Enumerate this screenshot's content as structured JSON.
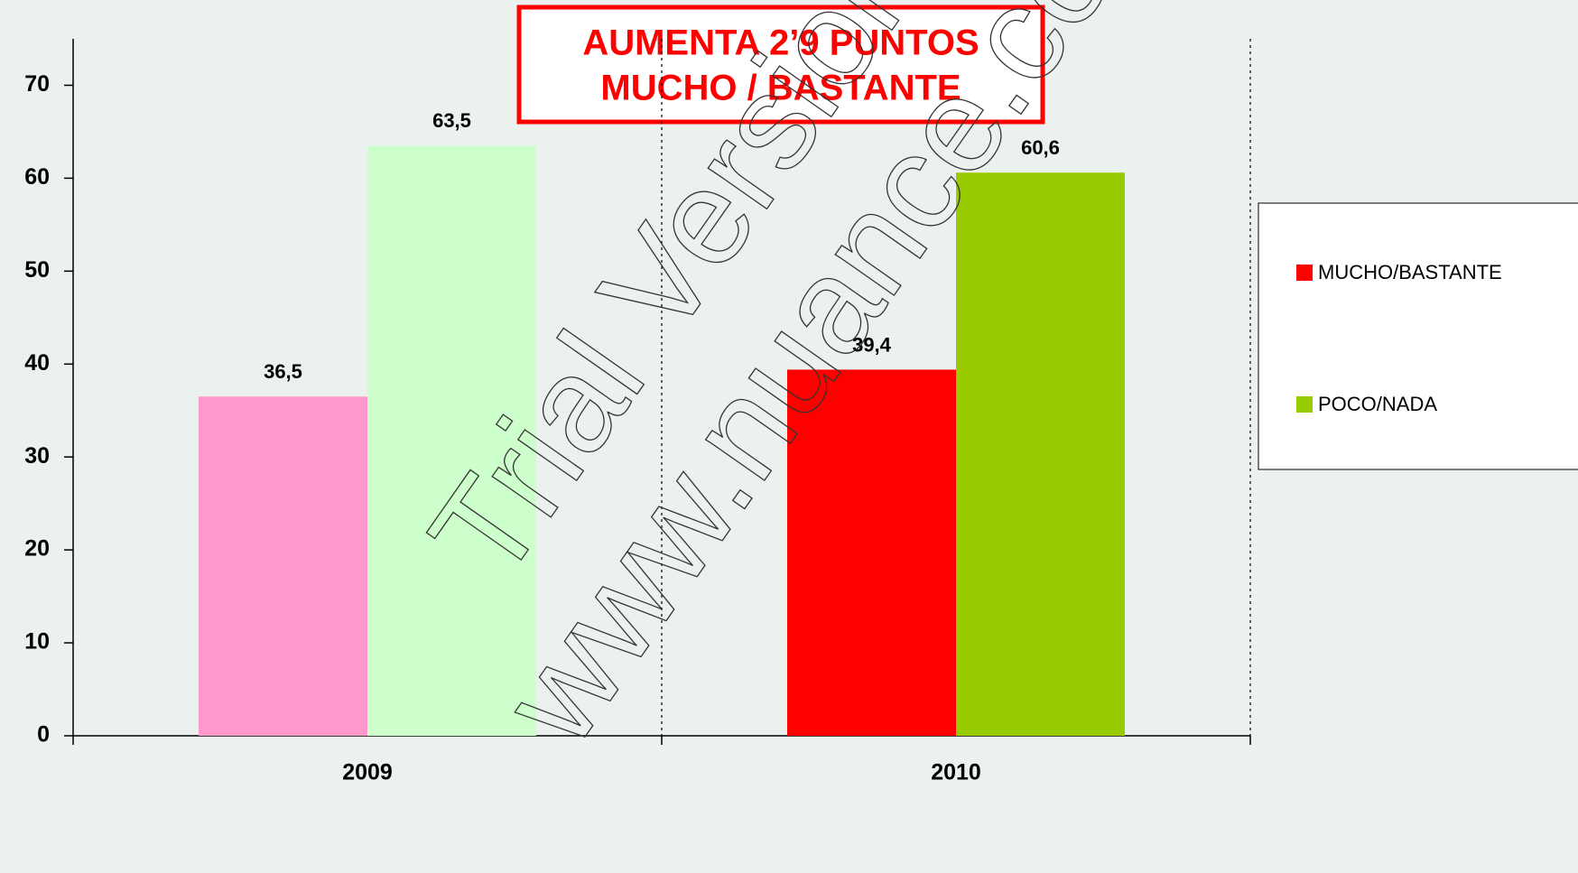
{
  "chart_data": {
    "type": "bar",
    "annotation": [
      "AUMENTA 2’9 PUNTOS",
      "MUCHO / BASTANTE"
    ],
    "watermark": [
      "Trial Version",
      "www.nuance.com"
    ],
    "categories": [
      "2009",
      "2010"
    ],
    "series": [
      {
        "name": "MUCHO/BASTANTE",
        "color": "#ff0000",
        "point_colors": [
          "#ff99cc",
          "#ff0000"
        ],
        "values": [
          36.5,
          39.4
        ],
        "value_labels": [
          "36,5",
          "39,4"
        ]
      },
      {
        "name": "POCO/NADA",
        "color": "#99cc00",
        "point_colors": [
          "#ccffcc",
          "#99cc00"
        ],
        "values": [
          63.5,
          60.6
        ],
        "value_labels": [
          "63,5",
          "60,6"
        ]
      }
    ],
    "ylim": [
      0,
      75
    ],
    "yticks": [
      0,
      10,
      20,
      30,
      40,
      50,
      60,
      70
    ],
    "legend": "right"
  }
}
